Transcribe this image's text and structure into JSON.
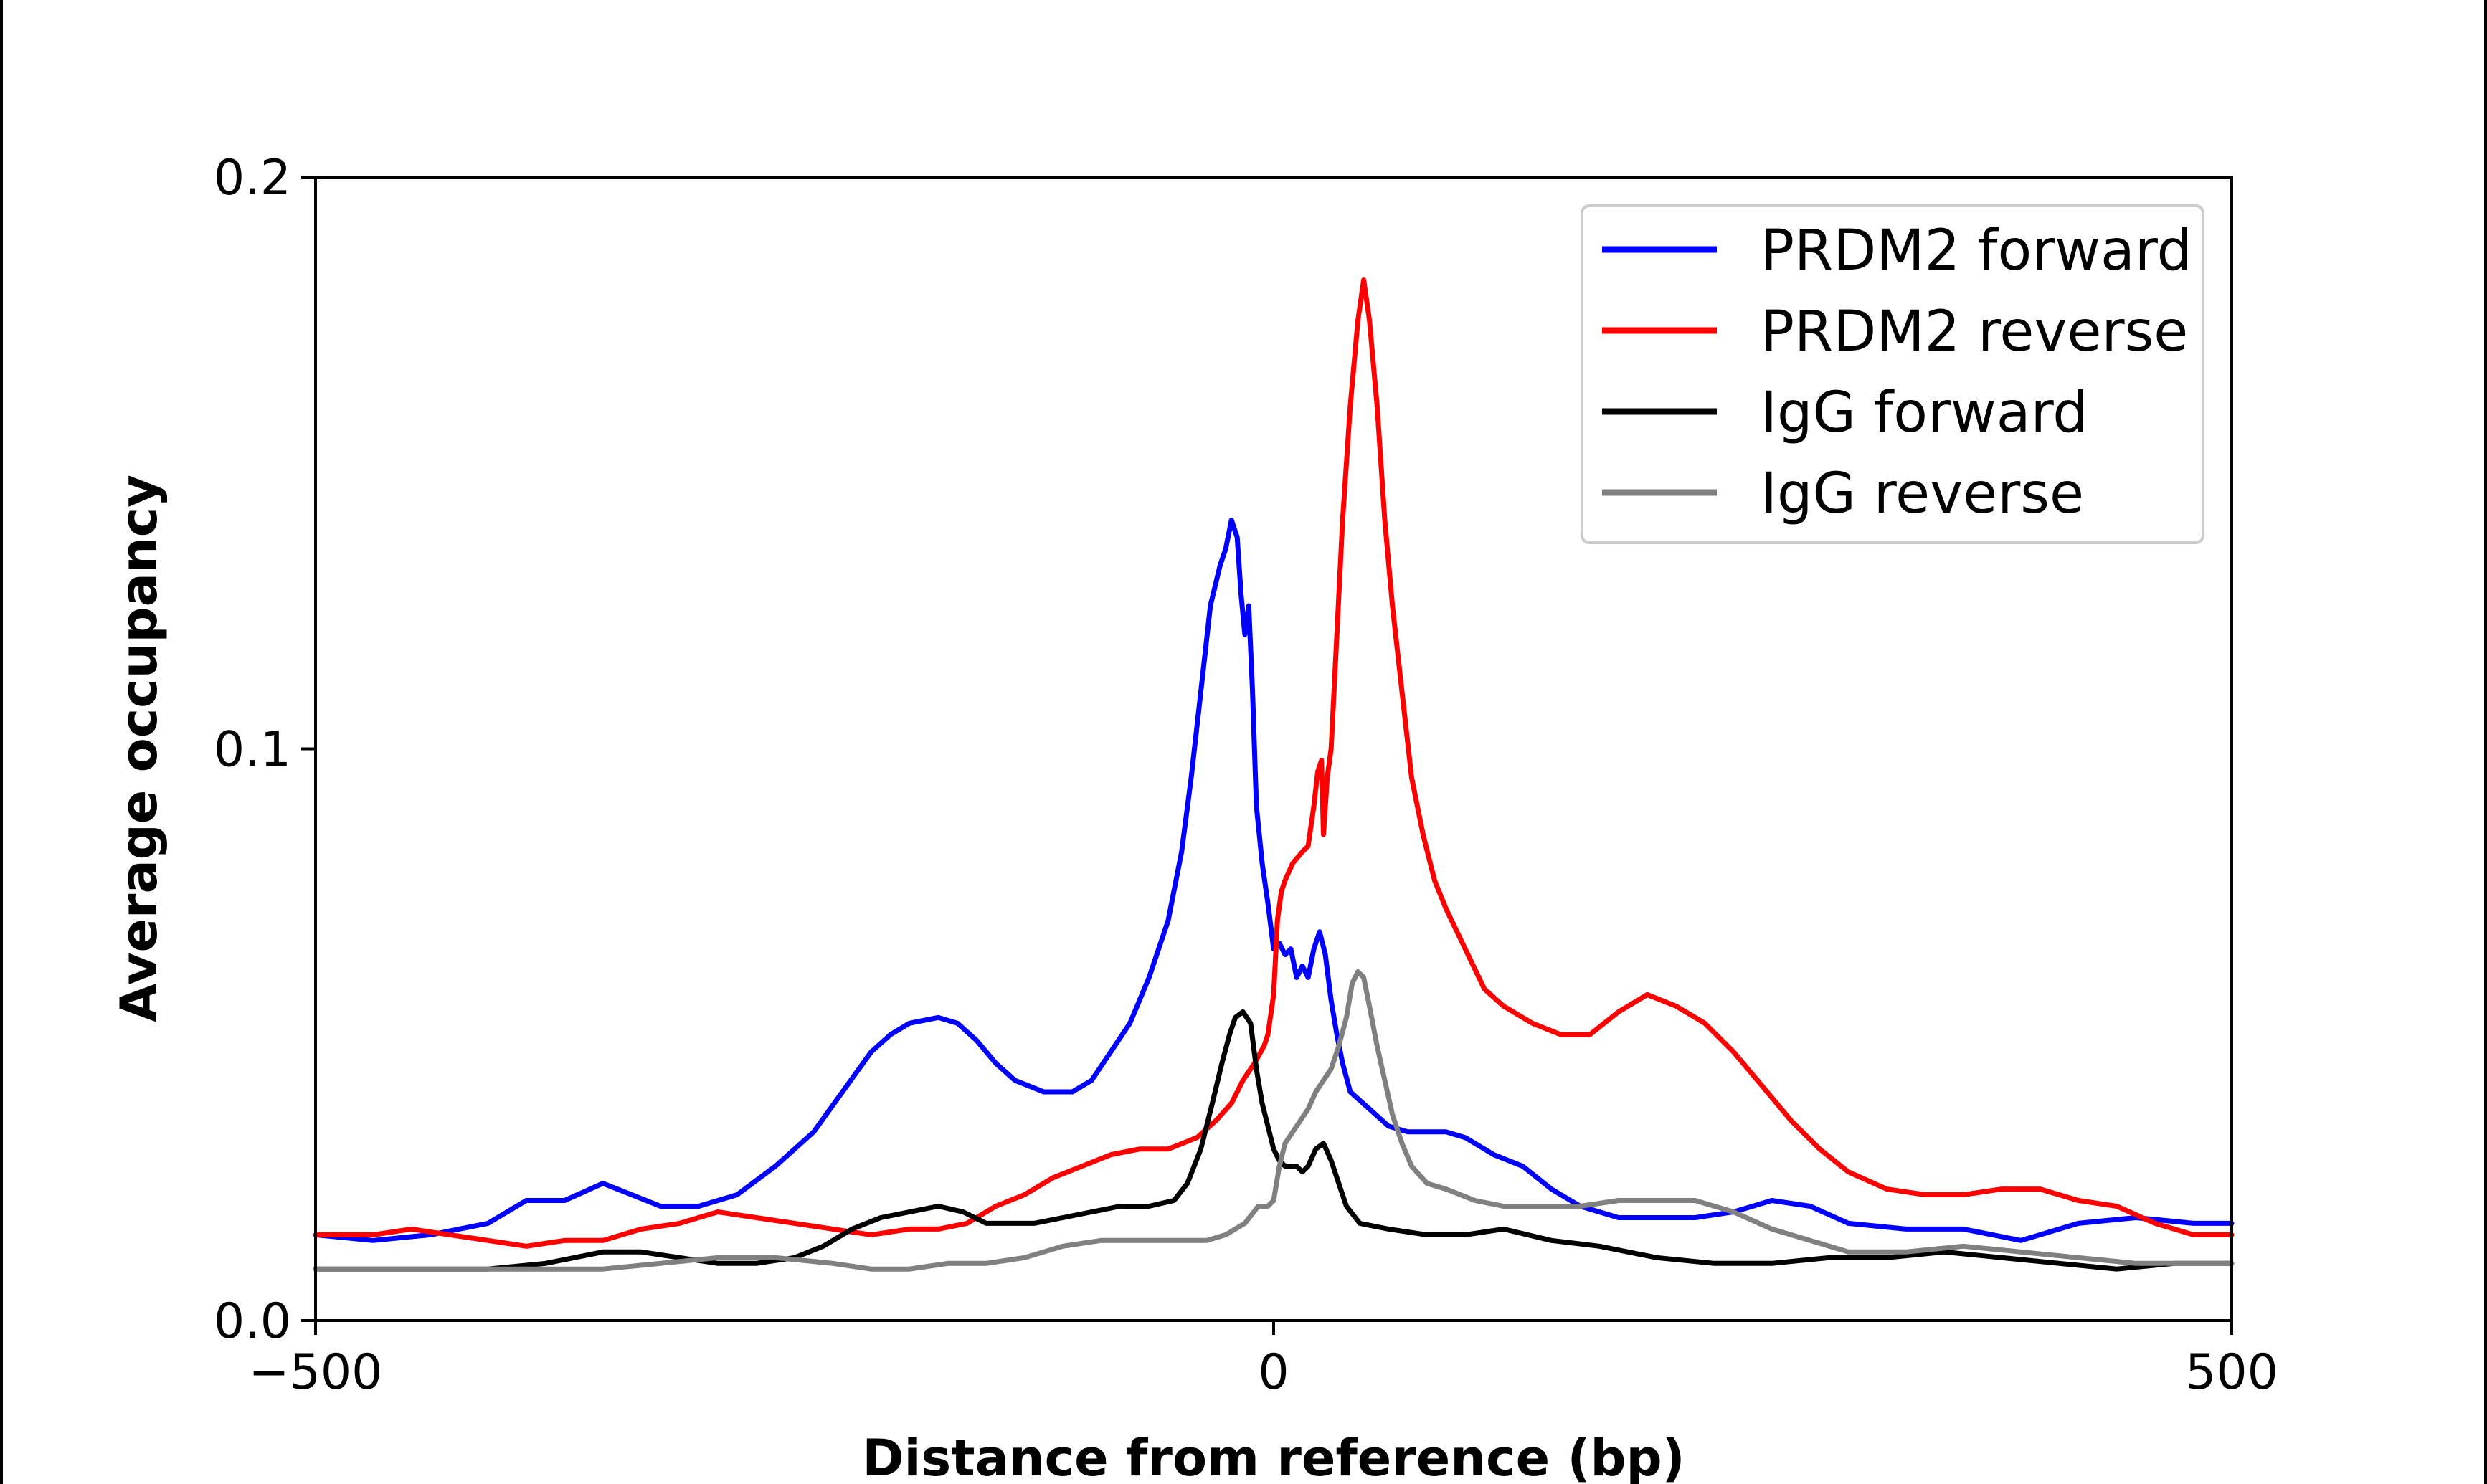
{
  "chart_data": {
    "type": "line",
    "title": "",
    "xlabel": "Distance from reference (bp)",
    "ylabel": "Average occupancy",
    "xlim": [
      -500,
      500
    ],
    "ylim": [
      0.0,
      0.2
    ],
    "x_ticks": [
      -500,
      0,
      500
    ],
    "x_tick_labels": [
      "−500",
      "0",
      "500"
    ],
    "y_ticks": [
      0.0,
      0.1,
      0.2
    ],
    "y_tick_labels": [
      "0.0",
      "0.1",
      "0.2"
    ],
    "grid": false,
    "legend_position": "top-right",
    "series": [
      {
        "name": "PRDM2 forward",
        "color": "#0000ff",
        "points": [
          [
            -500,
            0.015
          ],
          [
            -470,
            0.014
          ],
          [
            -440,
            0.015
          ],
          [
            -410,
            0.017
          ],
          [
            -390,
            0.021
          ],
          [
            -370,
            0.021
          ],
          [
            -350,
            0.024
          ],
          [
            -335,
            0.022
          ],
          [
            -320,
            0.02
          ],
          [
            -300,
            0.02
          ],
          [
            -280,
            0.022
          ],
          [
            -260,
            0.027
          ],
          [
            -240,
            0.033
          ],
          [
            -225,
            0.04
          ],
          [
            -210,
            0.047
          ],
          [
            -200,
            0.05
          ],
          [
            -190,
            0.052
          ],
          [
            -175,
            0.053
          ],
          [
            -165,
            0.052
          ],
          [
            -155,
            0.049
          ],
          [
            -145,
            0.045
          ],
          [
            -135,
            0.042
          ],
          [
            -120,
            0.04
          ],
          [
            -105,
            0.04
          ],
          [
            -95,
            0.042
          ],
          [
            -85,
            0.047
          ],
          [
            -75,
            0.052
          ],
          [
            -65,
            0.06
          ],
          [
            -55,
            0.07
          ],
          [
            -48,
            0.082
          ],
          [
            -43,
            0.095
          ],
          [
            -38,
            0.11
          ],
          [
            -33,
            0.125
          ],
          [
            -28,
            0.132
          ],
          [
            -25,
            0.135
          ],
          [
            -22,
            0.14
          ],
          [
            -19,
            0.137
          ],
          [
            -17,
            0.127
          ],
          [
            -15,
            0.12
          ],
          [
            -13,
            0.125
          ],
          [
            -11,
            0.11
          ],
          [
            -9,
            0.09
          ],
          [
            -6,
            0.08
          ],
          [
            -3,
            0.073
          ],
          [
            0,
            0.065
          ],
          [
            3,
            0.066
          ],
          [
            6,
            0.064
          ],
          [
            9,
            0.065
          ],
          [
            12,
            0.06
          ],
          [
            15,
            0.062
          ],
          [
            18,
            0.06
          ],
          [
            21,
            0.065
          ],
          [
            24,
            0.068
          ],
          [
            27,
            0.064
          ],
          [
            30,
            0.056
          ],
          [
            33,
            0.05
          ],
          [
            36,
            0.045
          ],
          [
            40,
            0.04
          ],
          [
            50,
            0.037
          ],
          [
            60,
            0.034
          ],
          [
            70,
            0.033
          ],
          [
            80,
            0.033
          ],
          [
            90,
            0.033
          ],
          [
            100,
            0.032
          ],
          [
            115,
            0.029
          ],
          [
            130,
            0.027
          ],
          [
            145,
            0.023
          ],
          [
            160,
            0.02
          ],
          [
            180,
            0.018
          ],
          [
            200,
            0.018
          ],
          [
            220,
            0.018
          ],
          [
            240,
            0.019
          ],
          [
            260,
            0.021
          ],
          [
            280,
            0.02
          ],
          [
            300,
            0.017
          ],
          [
            330,
            0.016
          ],
          [
            360,
            0.016
          ],
          [
            390,
            0.014
          ],
          [
            420,
            0.017
          ],
          [
            450,
            0.018
          ],
          [
            480,
            0.017
          ],
          [
            500,
            0.017
          ]
        ]
      },
      {
        "name": "PRDM2 reverse",
        "color": "#ff0000",
        "points": [
          [
            -500,
            0.015
          ],
          [
            -470,
            0.015
          ],
          [
            -450,
            0.016
          ],
          [
            -430,
            0.015
          ],
          [
            -410,
            0.014
          ],
          [
            -390,
            0.013
          ],
          [
            -370,
            0.014
          ],
          [
            -350,
            0.014
          ],
          [
            -330,
            0.016
          ],
          [
            -310,
            0.017
          ],
          [
            -290,
            0.019
          ],
          [
            -270,
            0.018
          ],
          [
            -250,
            0.017
          ],
          [
            -230,
            0.016
          ],
          [
            -210,
            0.015
          ],
          [
            -190,
            0.016
          ],
          [
            -175,
            0.016
          ],
          [
            -160,
            0.017
          ],
          [
            -145,
            0.02
          ],
          [
            -130,
            0.022
          ],
          [
            -115,
            0.025
          ],
          [
            -100,
            0.027
          ],
          [
            -85,
            0.029
          ],
          [
            -70,
            0.03
          ],
          [
            -55,
            0.03
          ],
          [
            -40,
            0.032
          ],
          [
            -30,
            0.035
          ],
          [
            -22,
            0.038
          ],
          [
            -16,
            0.042
          ],
          [
            -10,
            0.045
          ],
          [
            -5,
            0.048
          ],
          [
            -3,
            0.05
          ],
          [
            0,
            0.057
          ],
          [
            2,
            0.07
          ],
          [
            4,
            0.075
          ],
          [
            6,
            0.077
          ],
          [
            10,
            0.08
          ],
          [
            15,
            0.082
          ],
          [
            18,
            0.083
          ],
          [
            21,
            0.09
          ],
          [
            23,
            0.096
          ],
          [
            25,
            0.098
          ],
          [
            26,
            0.085
          ],
          [
            28,
            0.095
          ],
          [
            30,
            0.1
          ],
          [
            33,
            0.12
          ],
          [
            36,
            0.14
          ],
          [
            40,
            0.16
          ],
          [
            44,
            0.175
          ],
          [
            47,
            0.182
          ],
          [
            50,
            0.175
          ],
          [
            54,
            0.16
          ],
          [
            58,
            0.14
          ],
          [
            62,
            0.125
          ],
          [
            67,
            0.11
          ],
          [
            72,
            0.095
          ],
          [
            78,
            0.085
          ],
          [
            84,
            0.077
          ],
          [
            90,
            0.072
          ],
          [
            100,
            0.065
          ],
          [
            110,
            0.058
          ],
          [
            120,
            0.055
          ],
          [
            135,
            0.052
          ],
          [
            150,
            0.05
          ],
          [
            165,
            0.05
          ],
          [
            180,
            0.054
          ],
          [
            195,
            0.057
          ],
          [
            210,
            0.055
          ],
          [
            225,
            0.052
          ],
          [
            240,
            0.047
          ],
          [
            255,
            0.041
          ],
          [
            270,
            0.035
          ],
          [
            285,
            0.03
          ],
          [
            300,
            0.026
          ],
          [
            320,
            0.023
          ],
          [
            340,
            0.022
          ],
          [
            360,
            0.022
          ],
          [
            380,
            0.023
          ],
          [
            400,
            0.023
          ],
          [
            420,
            0.021
          ],
          [
            440,
            0.02
          ],
          [
            460,
            0.017
          ],
          [
            480,
            0.015
          ],
          [
            500,
            0.015
          ]
        ]
      },
      {
        "name": "IgG forward",
        "color": "#000000",
        "points": [
          [
            -500,
            0.009
          ],
          [
            -470,
            0.009
          ],
          [
            -440,
            0.009
          ],
          [
            -410,
            0.009
          ],
          [
            -380,
            0.01
          ],
          [
            -350,
            0.012
          ],
          [
            -330,
            0.012
          ],
          [
            -310,
            0.011
          ],
          [
            -290,
            0.01
          ],
          [
            -270,
            0.01
          ],
          [
            -250,
            0.011
          ],
          [
            -235,
            0.013
          ],
          [
            -220,
            0.016
          ],
          [
            -205,
            0.018
          ],
          [
            -190,
            0.019
          ],
          [
            -175,
            0.02
          ],
          [
            -162,
            0.019
          ],
          [
            -150,
            0.017
          ],
          [
            -140,
            0.017
          ],
          [
            -125,
            0.017
          ],
          [
            -110,
            0.018
          ],
          [
            -95,
            0.019
          ],
          [
            -80,
            0.02
          ],
          [
            -65,
            0.02
          ],
          [
            -52,
            0.021
          ],
          [
            -45,
            0.024
          ],
          [
            -38,
            0.03
          ],
          [
            -32,
            0.038
          ],
          [
            -27,
            0.045
          ],
          [
            -23,
            0.05
          ],
          [
            -20,
            0.053
          ],
          [
            -16,
            0.054
          ],
          [
            -12,
            0.052
          ],
          [
            -9,
            0.044
          ],
          [
            -6,
            0.038
          ],
          [
            -3,
            0.034
          ],
          [
            0,
            0.03
          ],
          [
            3,
            0.028
          ],
          [
            6,
            0.027
          ],
          [
            9,
            0.027
          ],
          [
            12,
            0.027
          ],
          [
            15,
            0.026
          ],
          [
            18,
            0.027
          ],
          [
            22,
            0.03
          ],
          [
            26,
            0.031
          ],
          [
            30,
            0.028
          ],
          [
            34,
            0.024
          ],
          [
            38,
            0.02
          ],
          [
            45,
            0.017
          ],
          [
            60,
            0.016
          ],
          [
            80,
            0.015
          ],
          [
            100,
            0.015
          ],
          [
            120,
            0.016
          ],
          [
            145,
            0.014
          ],
          [
            170,
            0.013
          ],
          [
            200,
            0.011
          ],
          [
            230,
            0.01
          ],
          [
            260,
            0.01
          ],
          [
            290,
            0.011
          ],
          [
            320,
            0.011
          ],
          [
            350,
            0.012
          ],
          [
            380,
            0.011
          ],
          [
            410,
            0.01
          ],
          [
            440,
            0.009
          ],
          [
            470,
            0.01
          ],
          [
            500,
            0.01
          ]
        ]
      },
      {
        "name": "IgG reverse",
        "color": "#808080",
        "points": [
          [
            -500,
            0.009
          ],
          [
            -470,
            0.009
          ],
          [
            -440,
            0.009
          ],
          [
            -410,
            0.009
          ],
          [
            -380,
            0.009
          ],
          [
            -350,
            0.009
          ],
          [
            -320,
            0.01
          ],
          [
            -290,
            0.011
          ],
          [
            -260,
            0.011
          ],
          [
            -230,
            0.01
          ],
          [
            -210,
            0.009
          ],
          [
            -190,
            0.009
          ],
          [
            -170,
            0.01
          ],
          [
            -150,
            0.01
          ],
          [
            -130,
            0.011
          ],
          [
            -110,
            0.013
          ],
          [
            -90,
            0.014
          ],
          [
            -70,
            0.014
          ],
          [
            -50,
            0.014
          ],
          [
            -35,
            0.014
          ],
          [
            -25,
            0.015
          ],
          [
            -15,
            0.017
          ],
          [
            -8,
            0.02
          ],
          [
            -3,
            0.02
          ],
          [
            0,
            0.021
          ],
          [
            3,
            0.027
          ],
          [
            6,
            0.031
          ],
          [
            10,
            0.033
          ],
          [
            14,
            0.035
          ],
          [
            18,
            0.037
          ],
          [
            22,
            0.04
          ],
          [
            26,
            0.042
          ],
          [
            30,
            0.044
          ],
          [
            34,
            0.048
          ],
          [
            38,
            0.053
          ],
          [
            41,
            0.059
          ],
          [
            44,
            0.061
          ],
          [
            47,
            0.06
          ],
          [
            50,
            0.055
          ],
          [
            54,
            0.048
          ],
          [
            58,
            0.042
          ],
          [
            62,
            0.036
          ],
          [
            67,
            0.031
          ],
          [
            72,
            0.027
          ],
          [
            80,
            0.024
          ],
          [
            90,
            0.023
          ],
          [
            105,
            0.021
          ],
          [
            120,
            0.02
          ],
          [
            140,
            0.02
          ],
          [
            160,
            0.02
          ],
          [
            180,
            0.021
          ],
          [
            200,
            0.021
          ],
          [
            220,
            0.021
          ],
          [
            240,
            0.019
          ],
          [
            260,
            0.016
          ],
          [
            280,
            0.014
          ],
          [
            300,
            0.012
          ],
          [
            330,
            0.012
          ],
          [
            360,
            0.013
          ],
          [
            390,
            0.012
          ],
          [
            420,
            0.011
          ],
          [
            450,
            0.01
          ],
          [
            480,
            0.01
          ],
          [
            500,
            0.01
          ]
        ]
      }
    ]
  }
}
